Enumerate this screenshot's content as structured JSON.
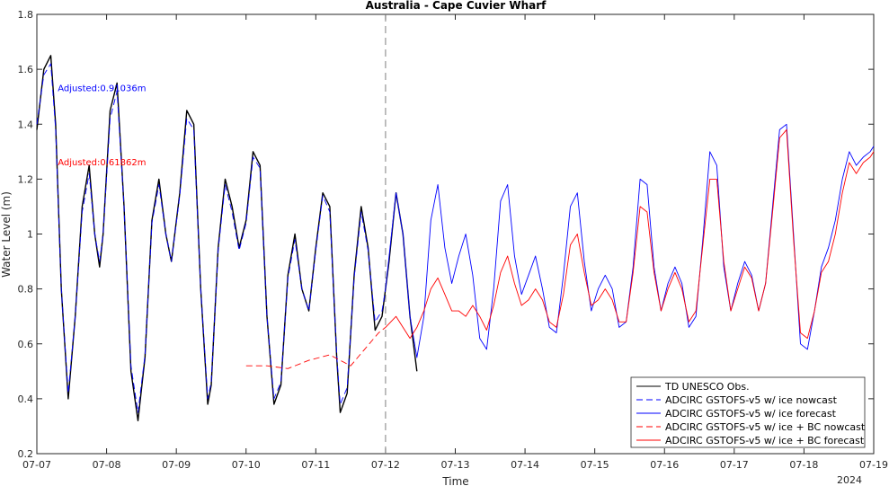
{
  "chart_data": {
    "type": "line",
    "title": "Australia - Cape Cuvier Wharf",
    "xlabel": "Time",
    "ylabel": "Water Level (m)",
    "x_year_label": "2024",
    "x_ticks": [
      "07-07",
      "07-08",
      "07-09",
      "07-10",
      "07-11",
      "07-12",
      "07-13",
      "07-14",
      "07-15",
      "07-16",
      "07-17",
      "07-18",
      "07-19"
    ],
    "x_range_days": [
      0,
      12
    ],
    "y_ticks": [
      "0.2",
      "0.4",
      "0.6",
      "0.8",
      "1",
      "1.2",
      "1.4",
      "1.6",
      "1.8"
    ],
    "ylim": [
      0.2,
      1.8
    ],
    "grid": false,
    "legend_position": "bottom-right",
    "now_marker_day": 5,
    "annotations": [
      {
        "text": "Adjusted:0.91036m",
        "color": "#0000ff",
        "x_day": 0.3,
        "y": 1.52
      },
      {
        "text": "Adjusted:0.61862m",
        "color": "#ff0000",
        "x_day": 0.3,
        "y": 1.25
      }
    ],
    "series": [
      {
        "name": "TD UNESCO Obs.",
        "color": "#000000",
        "style": "solid",
        "x": [
          0.0,
          0.1,
          0.2,
          0.27,
          0.35,
          0.45,
          0.55,
          0.65,
          0.75,
          0.83,
          0.9,
          0.95,
          1.05,
          1.15,
          1.25,
          1.35,
          1.45,
          1.55,
          1.65,
          1.75,
          1.85,
          1.93,
          2.05,
          2.15,
          2.25,
          2.35,
          2.45,
          2.5,
          2.6,
          2.7,
          2.8,
          2.9,
          3.0,
          3.1,
          3.2,
          3.3,
          3.4,
          3.5,
          3.6,
          3.7,
          3.8,
          3.9,
          4.0,
          4.1,
          4.2,
          4.3,
          4.35,
          4.45,
          4.55,
          4.65,
          4.75,
          4.85,
          4.95,
          5.05,
          5.15,
          5.25,
          5.35,
          5.45
        ],
        "y": [
          1.38,
          1.6,
          1.65,
          1.4,
          0.8,
          0.4,
          0.7,
          1.1,
          1.25,
          1.0,
          0.88,
          1.0,
          1.45,
          1.55,
          1.1,
          0.5,
          0.32,
          0.55,
          1.05,
          1.2,
          1.0,
          0.9,
          1.15,
          1.45,
          1.4,
          0.8,
          0.38,
          0.45,
          0.95,
          1.2,
          1.1,
          0.95,
          1.05,
          1.3,
          1.25,
          0.7,
          0.38,
          0.45,
          0.85,
          1.0,
          0.8,
          0.72,
          0.95,
          1.15,
          1.1,
          0.55,
          0.35,
          0.42,
          0.85,
          1.1,
          0.95,
          0.65,
          0.7,
          0.9,
          1.15,
          1.0,
          0.7,
          0.5
        ]
      },
      {
        "name": "ADCIRC GSTOFS-v5 w/ ice nowcast",
        "color": "#0000ff",
        "style": "dashed",
        "x": [
          0.0,
          0.1,
          0.2,
          0.27,
          0.35,
          0.45,
          0.55,
          0.65,
          0.75,
          0.83,
          0.9,
          0.95,
          1.05,
          1.15,
          1.25,
          1.35,
          1.45,
          1.55,
          1.65,
          1.75,
          1.85,
          1.93,
          2.05,
          2.15,
          2.25,
          2.35,
          2.45,
          2.5,
          2.6,
          2.7,
          2.8,
          2.9,
          3.0,
          3.1,
          3.2,
          3.3,
          3.4,
          3.5,
          3.6,
          3.7,
          3.8,
          3.9,
          4.0,
          4.1,
          4.2,
          4.3,
          4.35,
          4.45,
          4.55,
          4.65,
          4.75,
          4.85,
          4.95,
          5.0
        ],
        "y": [
          1.4,
          1.58,
          1.62,
          1.38,
          0.8,
          0.42,
          0.7,
          1.08,
          1.22,
          1.0,
          0.9,
          1.0,
          1.42,
          1.52,
          1.1,
          0.52,
          0.35,
          0.56,
          1.04,
          1.18,
          1.0,
          0.9,
          1.14,
          1.42,
          1.38,
          0.8,
          0.4,
          0.46,
          0.94,
          1.18,
          1.08,
          0.94,
          1.04,
          1.28,
          1.24,
          0.7,
          0.4,
          0.46,
          0.84,
          0.98,
          0.8,
          0.72,
          0.94,
          1.14,
          1.08,
          0.56,
          0.38,
          0.44,
          0.84,
          1.08,
          0.94,
          0.68,
          0.72,
          0.8
        ]
      },
      {
        "name": "ADCIRC GSTOFS-v5 w/ ice forecast",
        "color": "#0000ff",
        "style": "solid",
        "x": [
          5.0,
          5.15,
          5.25,
          5.35,
          5.45,
          5.55,
          5.65,
          5.75,
          5.85,
          5.95,
          6.05,
          6.15,
          6.25,
          6.35,
          6.45,
          6.55,
          6.65,
          6.75,
          6.85,
          6.95,
          7.05,
          7.15,
          7.25,
          7.35,
          7.45,
          7.55,
          7.65,
          7.75,
          7.85,
          7.95,
          8.05,
          8.15,
          8.25,
          8.35,
          8.45,
          8.55,
          8.65,
          8.75,
          8.85,
          8.95,
          9.05,
          9.15,
          9.25,
          9.35,
          9.45,
          9.55,
          9.65,
          9.75,
          9.85,
          9.95,
          10.05,
          10.15,
          10.25,
          10.35,
          10.45,
          10.55,
          10.65,
          10.75,
          10.85,
          10.95,
          11.05,
          11.15,
          11.25,
          11.35,
          11.45,
          11.55,
          11.65,
          11.75,
          11.85,
          11.95,
          12.0
        ],
        "y": [
          0.8,
          1.15,
          1.0,
          0.7,
          0.55,
          0.7,
          1.05,
          1.18,
          0.95,
          0.82,
          0.92,
          1.0,
          0.85,
          0.62,
          0.58,
          0.8,
          1.12,
          1.18,
          0.92,
          0.78,
          0.85,
          0.92,
          0.8,
          0.66,
          0.64,
          0.85,
          1.1,
          1.15,
          0.9,
          0.72,
          0.8,
          0.85,
          0.8,
          0.66,
          0.68,
          0.88,
          1.2,
          1.18,
          0.88,
          0.72,
          0.82,
          0.88,
          0.82,
          0.66,
          0.7,
          0.98,
          1.3,
          1.25,
          0.88,
          0.72,
          0.82,
          0.9,
          0.85,
          0.72,
          0.82,
          1.1,
          1.38,
          1.4,
          1.0,
          0.6,
          0.58,
          0.72,
          0.88,
          0.95,
          1.05,
          1.2,
          1.3,
          1.25,
          1.28,
          1.3,
          1.32
        ]
      },
      {
        "name": "ADCIRC GSTOFS-v5 w/ ice + BC nowcast",
        "color": "#ff0000",
        "style": "dashed",
        "x": [
          3.0,
          3.3,
          3.6,
          3.9,
          4.2,
          4.5,
          4.7,
          4.9,
          5.0
        ],
        "y": [
          0.52,
          0.52,
          0.51,
          0.54,
          0.56,
          0.52,
          0.58,
          0.64,
          0.66
        ]
      },
      {
        "name": "ADCIRC GSTOFS-v5 w/ ice + BC forecast",
        "color": "#ff0000",
        "style": "solid",
        "x": [
          5.0,
          5.15,
          5.25,
          5.35,
          5.45,
          5.55,
          5.65,
          5.75,
          5.85,
          5.95,
          6.05,
          6.15,
          6.25,
          6.35,
          6.45,
          6.55,
          6.65,
          6.75,
          6.85,
          6.95,
          7.05,
          7.15,
          7.25,
          7.35,
          7.45,
          7.55,
          7.65,
          7.75,
          7.85,
          7.95,
          8.05,
          8.15,
          8.25,
          8.35,
          8.45,
          8.55,
          8.65,
          8.75,
          8.85,
          8.95,
          9.05,
          9.15,
          9.25,
          9.35,
          9.45,
          9.55,
          9.65,
          9.75,
          9.85,
          9.95,
          10.05,
          10.15,
          10.25,
          10.35,
          10.45,
          10.55,
          10.65,
          10.75,
          10.85,
          10.95,
          11.05,
          11.15,
          11.25,
          11.35,
          11.45,
          11.55,
          11.65,
          11.75,
          11.85,
          11.95,
          12.0
        ],
        "y": [
          0.66,
          0.7,
          0.66,
          0.62,
          0.66,
          0.72,
          0.8,
          0.84,
          0.78,
          0.72,
          0.72,
          0.7,
          0.74,
          0.7,
          0.65,
          0.74,
          0.86,
          0.92,
          0.82,
          0.74,
          0.76,
          0.8,
          0.76,
          0.68,
          0.66,
          0.78,
          0.96,
          1.0,
          0.86,
          0.74,
          0.76,
          0.8,
          0.76,
          0.68,
          0.68,
          0.86,
          1.1,
          1.08,
          0.86,
          0.72,
          0.8,
          0.86,
          0.8,
          0.68,
          0.72,
          0.96,
          1.2,
          1.2,
          0.9,
          0.72,
          0.8,
          0.88,
          0.84,
          0.72,
          0.82,
          1.08,
          1.35,
          1.38,
          0.98,
          0.64,
          0.62,
          0.72,
          0.86,
          0.9,
          1.0,
          1.15,
          1.26,
          1.22,
          1.26,
          1.28,
          1.3
        ]
      }
    ]
  }
}
